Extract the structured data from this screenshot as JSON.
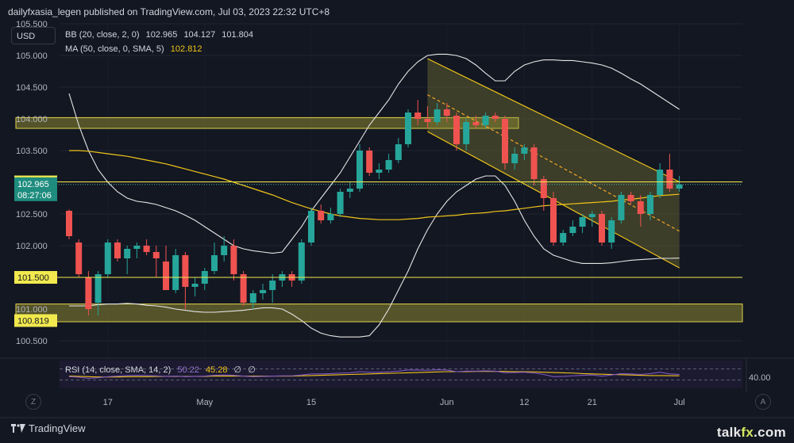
{
  "header": {
    "publisher_line": "dailyfxasia_legen published on TradingView.com, Jul 03, 2023 22:32 UTC+8"
  },
  "currency_box": "USD",
  "legend": {
    "bb": {
      "label": "BB (20, close, 2, 0)",
      "values": [
        "102.965",
        "104.127",
        "101.804"
      ]
    },
    "ma": {
      "label": "MA (50, close, 0, SMA, 5)",
      "value": "102.812"
    },
    "rsi": {
      "label": "RSI (14, close, SMA, 14, 2)",
      "rsi_value": "50.22",
      "sma_value": "45.28",
      "extra": [
        "∅",
        "∅"
      ]
    }
  },
  "price_axis": {
    "ticks": [
      "105.500",
      "105.000",
      "104.500",
      "104.000",
      "103.500",
      "103.000",
      "102.500",
      "102.000",
      "101.500",
      "101.000",
      "100.500"
    ],
    "markers": {
      "resistance_label": "103.006",
      "current_price": "102.965",
      "countdown": "08:27:06",
      "support1_label": "101.500",
      "support2_label": "100.819"
    }
  },
  "rsi_axis": {
    "tick": "40.00"
  },
  "time_axis": {
    "labels": [
      "17",
      "May",
      "15",
      "Jun",
      "12",
      "21",
      "Jul"
    ]
  },
  "buttons": {
    "z": "Z",
    "a": "A"
  },
  "brand": "TradingView",
  "watermark": {
    "prefix": "talk",
    "accent": "fx",
    "suffix": ".com"
  },
  "colors": {
    "background": "#131722",
    "bull": "#26a69a",
    "bear": "#ef5350",
    "bollinger": "#e6e6e6",
    "ma": "#f0c419",
    "zone": "#807c2e",
    "rsi": "#7e57c2"
  },
  "chart_data": {
    "type": "candlestick",
    "symbol_currency": "USD",
    "ylim": [
      100.25,
      105.5
    ],
    "resistance_zone": [
      103.85,
      104.02
    ],
    "support_zone": [
      100.8,
      101.08
    ],
    "horizontal_levels": [
      103.006,
      101.5
    ],
    "candles": [
      {
        "o": 102.55,
        "h": 102.57,
        "l": 102.1,
        "c": 102.15
      },
      {
        "o": 102.05,
        "h": 102.1,
        "l": 101.5,
        "c": 101.55
      },
      {
        "o": 101.5,
        "h": 101.6,
        "l": 100.9,
        "c": 101.0
      },
      {
        "o": 101.1,
        "h": 101.6,
        "l": 100.9,
        "c": 101.55
      },
      {
        "o": 101.55,
        "h": 102.1,
        "l": 101.5,
        "c": 102.05
      },
      {
        "o": 102.05,
        "h": 102.1,
        "l": 101.75,
        "c": 101.8
      },
      {
        "o": 101.8,
        "h": 102.0,
        "l": 101.55,
        "c": 101.95
      },
      {
        "o": 101.95,
        "h": 102.05,
        "l": 101.8,
        "c": 102.0
      },
      {
        "o": 102.0,
        "h": 102.1,
        "l": 101.85,
        "c": 101.9
      },
      {
        "o": 101.9,
        "h": 102.0,
        "l": 101.5,
        "c": 101.8
      },
      {
        "o": 101.75,
        "h": 102.0,
        "l": 101.3,
        "c": 101.3
      },
      {
        "o": 101.3,
        "h": 101.95,
        "l": 101.25,
        "c": 101.85
      },
      {
        "o": 101.85,
        "h": 101.9,
        "l": 101.0,
        "c": 101.35
      },
      {
        "o": 101.35,
        "h": 101.5,
        "l": 101.2,
        "c": 101.4
      },
      {
        "o": 101.4,
        "h": 101.65,
        "l": 101.3,
        "c": 101.6
      },
      {
        "o": 101.6,
        "h": 102.05,
        "l": 101.55,
        "c": 101.85
      },
      {
        "o": 101.85,
        "h": 102.15,
        "l": 101.75,
        "c": 102.0
      },
      {
        "o": 102.0,
        "h": 102.1,
        "l": 101.45,
        "c": 101.55
      },
      {
        "o": 101.55,
        "h": 101.6,
        "l": 101.05,
        "c": 101.1
      },
      {
        "o": 101.1,
        "h": 101.3,
        "l": 101.0,
        "c": 101.25
      },
      {
        "o": 101.25,
        "h": 101.4,
        "l": 101.15,
        "c": 101.3
      },
      {
        "o": 101.3,
        "h": 101.55,
        "l": 101.1,
        "c": 101.45
      },
      {
        "o": 101.45,
        "h": 101.6,
        "l": 101.35,
        "c": 101.55
      },
      {
        "o": 101.55,
        "h": 101.6,
        "l": 101.35,
        "c": 101.45
      },
      {
        "o": 101.45,
        "h": 102.1,
        "l": 101.4,
        "c": 102.05
      },
      {
        "o": 102.05,
        "h": 102.6,
        "l": 102.0,
        "c": 102.55
      },
      {
        "o": 102.55,
        "h": 102.65,
        "l": 102.35,
        "c": 102.4
      },
      {
        "o": 102.4,
        "h": 102.6,
        "l": 102.35,
        "c": 102.5
      },
      {
        "o": 102.5,
        "h": 102.9,
        "l": 102.45,
        "c": 102.85
      },
      {
        "o": 102.85,
        "h": 103.0,
        "l": 102.75,
        "c": 102.9
      },
      {
        "o": 102.9,
        "h": 103.6,
        "l": 102.85,
        "c": 103.5
      },
      {
        "o": 103.5,
        "h": 103.55,
        "l": 103.1,
        "c": 103.15
      },
      {
        "o": 103.15,
        "h": 103.3,
        "l": 103.05,
        "c": 103.2
      },
      {
        "o": 103.2,
        "h": 103.45,
        "l": 103.15,
        "c": 103.35
      },
      {
        "o": 103.35,
        "h": 103.7,
        "l": 103.3,
        "c": 103.6
      },
      {
        "o": 103.6,
        "h": 104.15,
        "l": 103.55,
        "c": 104.1
      },
      {
        "o": 104.1,
        "h": 104.3,
        "l": 103.9,
        "c": 104.0
      },
      {
        "o": 104.0,
        "h": 104.2,
        "l": 103.85,
        "c": 103.95
      },
      {
        "o": 103.95,
        "h": 104.25,
        "l": 103.9,
        "c": 104.15
      },
      {
        "o": 104.15,
        "h": 104.25,
        "l": 103.95,
        "c": 104.05
      },
      {
        "o": 104.05,
        "h": 104.1,
        "l": 103.5,
        "c": 103.6
      },
      {
        "o": 103.6,
        "h": 104.0,
        "l": 103.5,
        "c": 103.95
      },
      {
        "o": 103.95,
        "h": 104.05,
        "l": 103.85,
        "c": 103.9
      },
      {
        "o": 103.9,
        "h": 104.1,
        "l": 103.85,
        "c": 104.05
      },
      {
        "o": 104.05,
        "h": 104.1,
        "l": 103.95,
        "c": 104.0
      },
      {
        "o": 104.0,
        "h": 104.05,
        "l": 103.2,
        "c": 103.3
      },
      {
        "o": 103.3,
        "h": 103.55,
        "l": 103.2,
        "c": 103.45
      },
      {
        "o": 103.45,
        "h": 103.6,
        "l": 103.35,
        "c": 103.55
      },
      {
        "o": 103.55,
        "h": 103.6,
        "l": 102.95,
        "c": 103.05
      },
      {
        "o": 103.05,
        "h": 103.1,
        "l": 102.55,
        "c": 102.75
      },
      {
        "o": 102.75,
        "h": 102.85,
        "l": 102.0,
        "c": 102.05
      },
      {
        "o": 102.05,
        "h": 102.25,
        "l": 102.0,
        "c": 102.2
      },
      {
        "o": 102.2,
        "h": 102.4,
        "l": 102.15,
        "c": 102.3
      },
      {
        "o": 102.3,
        "h": 102.5,
        "l": 102.2,
        "c": 102.45
      },
      {
        "o": 102.45,
        "h": 102.55,
        "l": 102.3,
        "c": 102.5
      },
      {
        "o": 102.5,
        "h": 102.55,
        "l": 102.0,
        "c": 102.05
      },
      {
        "o": 102.05,
        "h": 102.45,
        "l": 101.95,
        "c": 102.4
      },
      {
        "o": 102.4,
        "h": 102.85,
        "l": 102.35,
        "c": 102.8
      },
      {
        "o": 102.8,
        "h": 102.85,
        "l": 102.65,
        "c": 102.7
      },
      {
        "o": 102.7,
        "h": 102.8,
        "l": 102.3,
        "c": 102.5
      },
      {
        "o": 102.5,
        "h": 102.85,
        "l": 102.4,
        "c": 102.8
      },
      {
        "o": 102.8,
        "h": 103.3,
        "l": 102.75,
        "c": 103.2
      },
      {
        "o": 103.2,
        "h": 103.45,
        "l": 102.85,
        "c": 102.9
      },
      {
        "o": 102.9,
        "h": 103.1,
        "l": 102.85,
        "c": 102.965
      }
    ],
    "moving_average_values": [
      103.5,
      103.5,
      103.49,
      103.47,
      103.45,
      103.43,
      103.41,
      103.38,
      103.35,
      103.32,
      103.29,
      103.25,
      103.21,
      103.17,
      103.13,
      103.09,
      103.05,
      103.0,
      102.95,
      102.9,
      102.85,
      102.8,
      102.74,
      102.68,
      102.63,
      102.58,
      102.54,
      102.5,
      102.47,
      102.45,
      102.43,
      102.42,
      102.41,
      102.41,
      102.41,
      102.42,
      102.43,
      102.45,
      102.46,
      102.47,
      102.48,
      102.5,
      102.51,
      102.52,
      102.54,
      102.55,
      102.57,
      102.59,
      102.61,
      102.63,
      102.64,
      102.65,
      102.66,
      102.67,
      102.68,
      102.69,
      102.7,
      102.72,
      102.73,
      102.75,
      102.77,
      102.79,
      102.8,
      102.812
    ],
    "bollinger_upper": [
      104.4,
      103.9,
      103.5,
      103.2,
      103.0,
      102.85,
      102.75,
      102.7,
      102.68,
      102.65,
      102.6,
      102.55,
      102.48,
      102.4,
      102.3,
      102.2,
      102.1,
      102.0,
      101.95,
      101.92,
      101.9,
      101.88,
      101.9,
      102.1,
      102.3,
      102.55,
      102.75,
      102.95,
      103.15,
      103.4,
      103.65,
      103.9,
      104.1,
      104.3,
      104.55,
      104.75,
      104.9,
      105.0,
      105.02,
      105.02,
      105.0,
      104.95,
      104.85,
      104.72,
      104.6,
      104.6,
      104.75,
      104.85,
      104.9,
      104.93,
      104.93,
      104.92,
      104.92,
      104.9,
      104.88,
      104.85,
      104.8,
      104.72,
      104.63,
      104.55,
      104.45,
      104.35,
      104.25,
      104.15
    ],
    "bollinger_lower": [
      101.05,
      101.05,
      101.05,
      101.07,
      101.08,
      101.08,
      101.09,
      101.08,
      101.06,
      101.05,
      101.03,
      101.0,
      100.98,
      100.96,
      100.95,
      100.95,
      100.96,
      100.97,
      100.98,
      101.0,
      101.02,
      101.02,
      101.0,
      100.92,
      100.82,
      100.7,
      100.62,
      100.58,
      100.56,
      100.56,
      100.56,
      100.58,
      100.75,
      101.0,
      101.3,
      101.6,
      101.95,
      102.25,
      102.5,
      102.7,
      102.85,
      102.95,
      103.05,
      103.1,
      103.1,
      102.95,
      102.7,
      102.4,
      102.15,
      101.95,
      101.85,
      101.8,
      101.75,
      101.72,
      101.72,
      101.72,
      101.73,
      101.75,
      101.77,
      101.78,
      101.79,
      101.8,
      101.8,
      101.804
    ],
    "descending_channel": {
      "upper": [
        [
          37,
          104.95
        ],
        [
          63,
          103.006
        ]
      ],
      "lower": [
        [
          37,
          103.8
        ],
        [
          63,
          101.65
        ]
      ],
      "midline": [
        [
          37,
          104.38
        ],
        [
          63,
          102.23
        ]
      ]
    },
    "rsi": {
      "ylim": [
        0,
        100
      ],
      "tick_value": 40,
      "values": [
        42,
        40,
        36,
        38,
        42,
        44,
        46,
        47,
        46,
        45,
        43,
        44,
        42,
        43,
        44,
        47,
        48,
        47,
        44,
        42,
        43,
        44,
        45,
        45,
        48,
        52,
        52,
        53,
        55,
        56,
        60,
        58,
        58,
        60,
        62,
        66,
        66,
        65,
        67,
        66,
        60,
        62,
        62,
        63,
        62,
        56,
        57,
        58,
        55,
        50,
        42,
        43,
        45,
        47,
        48,
        44,
        48,
        53,
        52,
        50,
        53,
        58,
        52,
        50.22
      ],
      "sma_values": [
        44,
        43,
        42,
        41,
        41,
        41,
        42,
        42,
        42,
        43,
        43,
        43,
        43,
        43,
        43,
        44,
        44,
        44,
        44,
        44,
        44,
        44,
        44,
        44,
        45,
        46,
        47,
        48,
        49,
        50,
        51,
        52,
        53,
        54,
        55,
        56,
        57,
        58,
        59,
        60,
        60,
        60,
        61,
        61,
        61,
        61,
        60,
        60,
        59,
        58,
        57,
        56,
        55,
        53,
        52,
        51,
        50,
        49,
        48,
        47,
        46,
        46,
        45.5,
        45.28
      ]
    }
  }
}
